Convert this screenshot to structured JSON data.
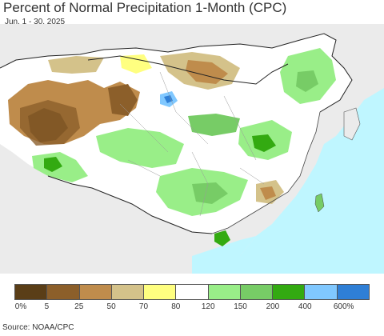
{
  "header": {
    "title": "Percent of Normal Precipitation 1-Month (CPC)",
    "subtitle": "Jun. 1 - 30, 2025"
  },
  "legend": {
    "colors": [
      "#5a3e17",
      "#8c5f2a",
      "#bf8c4c",
      "#d4c28a",
      "#ffff80",
      "#ffffff",
      "#99ee88",
      "#77cc66",
      "#33aa11",
      "#80c8ff",
      "#2f7fd6"
    ],
    "labels": [
      "0%",
      "5",
      "25",
      "50",
      "70",
      "80",
      "120",
      "150",
      "200",
      "400",
      "600%"
    ]
  },
  "footer": {
    "source": "Source: NOAA/CPC"
  }
}
